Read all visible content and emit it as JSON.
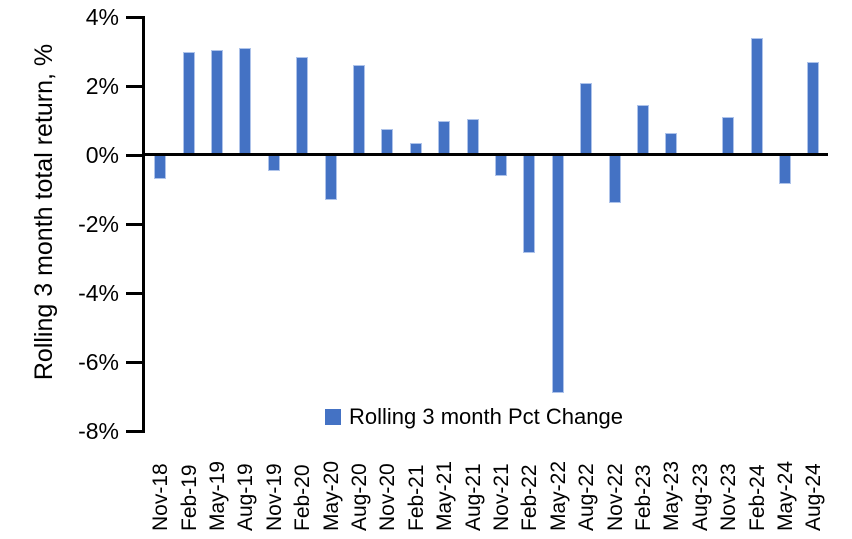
{
  "chart_data": {
    "type": "bar",
    "title": "",
    "xlabel": "",
    "ylabel": "Rolling 3 month total return, %",
    "categories": [
      "Nov-18",
      "Feb-19",
      "May-19",
      "Aug-19",
      "Nov-19",
      "Feb-20",
      "May-20",
      "Aug-20",
      "Nov-20",
      "Feb-21",
      "May-21",
      "Aug-21",
      "Nov-21",
      "Feb-22",
      "May-22",
      "Aug-22",
      "Nov-22",
      "Feb-23",
      "May-23",
      "Aug-23",
      "Nov-23",
      "Feb-24",
      "May-24",
      "Aug-24"
    ],
    "series": [
      {
        "name": "Rolling 3 month Pct Change",
        "values": [
          -0.7,
          3.0,
          3.05,
          3.1,
          -0.45,
          2.85,
          -1.3,
          2.6,
          0.75,
          0.35,
          1.0,
          1.05,
          -0.6,
          -2.85,
          -6.9,
          2.1,
          -1.4,
          1.45,
          0.65,
          0,
          1.1,
          3.4,
          -0.85,
          2.7
        ]
      }
    ],
    "ylim": [
      -8,
      4
    ],
    "yticks": [
      4,
      2,
      0,
      -2,
      -4,
      -6,
      -8
    ],
    "ytick_labels": [
      "4%",
      "2%",
      "0%",
      "-2%",
      "-4%",
      "-6%",
      "-8%"
    ],
    "grid": false,
    "legend_position": "bottom-center-inside",
    "bar_color": "#4472C4",
    "bar_edge_color": "#aec3ea",
    "axis_color": "#000000",
    "background_color": "#ffffff"
  }
}
